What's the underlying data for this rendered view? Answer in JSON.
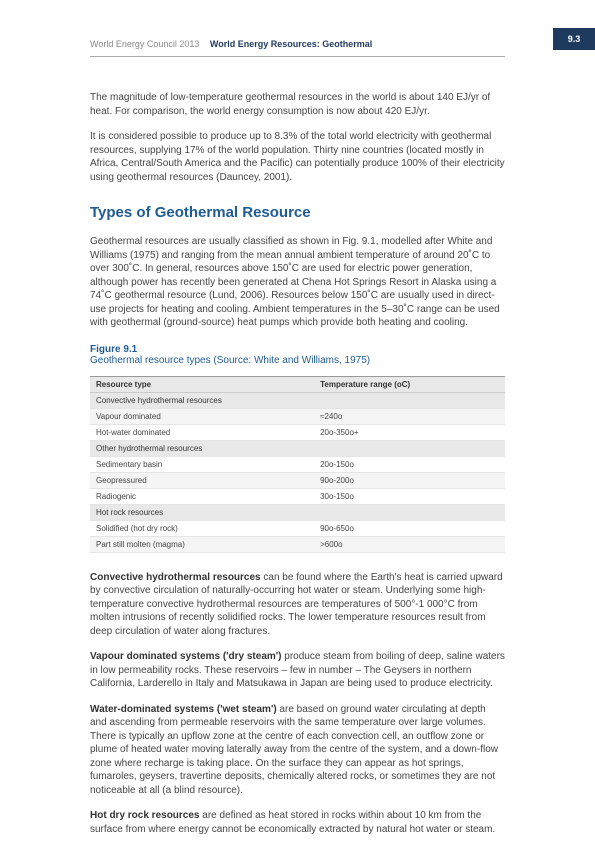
{
  "page_badge": "9.3",
  "header": {
    "org": "World Energy Council 2013",
    "title": "World Energy Resources: Geothermal"
  },
  "intro": {
    "p1": "The magnitude of low-temperature geothermal resources in the world is about 140 EJ/yr of heat. For comparison, the world energy consumption is now about 420 EJ/yr.",
    "p2": "It is considered possible to produce up to 8.3% of the total world electricity with geothermal resources, supplying 17% of the world population. Thirty nine countries (located mostly in Africa, Central/South America and the Pacific) can potentially produce 100% of their electricity using geothermal resources (Dauncey, 2001)."
  },
  "section_title": "Types of Geothermal Resource",
  "section_p": "Geothermal resources are usually classified as shown in Fig. 9.1, modelled after White and Williams (1975) and ranging from the mean annual ambient temperature of around 20˚C to over 300˚C. In general, resources above 150˚C are used for electric power generation, although power has recently been generated at Chena Hot Springs Resort in Alaska using a 74˚C geothermal resource (Lund, 2006). Resources below 150˚C are usually used in direct-use projects for heating and cooling. Ambient temperatures in the 5–30˚C range can be used with geothermal (ground-source) heat pumps which provide both heating and cooling.",
  "figure": {
    "label": "Figure 9.1",
    "caption": "Geothermal resource types (Source: White and Williams, 1975)"
  },
  "table": {
    "col1": "Resource type",
    "col2": "Temperature range (oC)",
    "rows": [
      {
        "type": "Convective hydrothermal resources",
        "range": "",
        "category": true
      },
      {
        "type": "Vapour dominated",
        "range": "≈240o",
        "zebra": true
      },
      {
        "type": "Hot-water dominated",
        "range": "20o-350o+"
      },
      {
        "type": "Other hydrothermal resources",
        "range": "",
        "category": true
      },
      {
        "type": "Sedimentary basin",
        "range": "20o-150o"
      },
      {
        "type": "Geopressured",
        "range": "90o-200o",
        "zebra": true
      },
      {
        "type": "Radiogenic",
        "range": "30o-150o"
      },
      {
        "type": "Hot rock resources",
        "range": "",
        "category": true
      },
      {
        "type": "Solidified (hot dry rock)",
        "range": "90o-650o"
      },
      {
        "type": "Part still molten (magma)",
        "range": ">600o",
        "zebra": true
      }
    ]
  },
  "defs": {
    "convective_term": "Convective hydrothermal resources",
    "convective_text": " can be found where the Earth's heat is carried upward by convective circulation of naturally-occurring hot water or steam. Underlying some high-temperature convective hydrothermal resources are temperatures of 500°-1 000°C from molten intrusions of recently solidified rocks. The lower temperature resources result from deep circulation of water along fractures.",
    "vapour_term": "Vapour dominated systems ('dry steam')",
    "vapour_text": " produce steam from boiling of deep, saline waters in low permeability rocks. These reservoirs – few in number – The Geysers in northern California, Larderello in Italy and Matsukawa in Japan are being used to produce electricity.",
    "water_term": "Water-dominated systems ('wet steam')",
    "water_text": " are based on ground water circulating at depth and ascending from permeable reservoirs with the same temperature over large volumes. There is typically an upflow zone at the centre of each convection cell, an outflow zone or plume of heated water moving laterally away from the centre of the system, and a down-flow zone where recharge is taking place. On the surface they can appear as hot springs, fumaroles, geysers, travertine deposits, chemically altered rocks, or sometimes they are not noticeable at all (a blind resource).",
    "hotrock_term": "Hot dry rock resources",
    "hotrock_text": " are defined as heat stored in rocks within about 10 km from the surface from where energy cannot be economically extracted by natural hot water or steam."
  }
}
